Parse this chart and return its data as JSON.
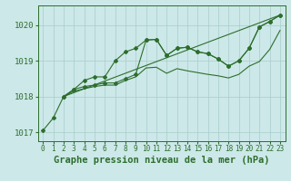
{
  "background_color": "#cce8e8",
  "grid_color": "#aacccc",
  "line_color": "#2d6e2d",
  "title": "Graphe pression niveau de la mer (hPa)",
  "xlim": [
    -0.5,
    23.5
  ],
  "ylim": [
    1016.75,
    1020.55
  ],
  "yticks": [
    1017,
    1018,
    1019,
    1020
  ],
  "xticks": [
    0,
    1,
    2,
    3,
    4,
    5,
    6,
    7,
    8,
    9,
    10,
    11,
    12,
    13,
    14,
    15,
    16,
    17,
    18,
    19,
    20,
    21,
    22,
    23
  ],
  "line1_x": [
    0,
    1,
    2,
    3,
    4,
    5,
    6,
    7,
    8,
    9,
    10,
    11,
    12,
    13,
    14,
    15,
    16,
    17,
    18,
    19,
    20,
    21,
    22,
    23
  ],
  "line1_y": [
    1017.05,
    1017.4,
    1018.0,
    1018.2,
    1018.45,
    1018.55,
    1018.55,
    1019.0,
    1019.25,
    1019.35,
    1019.58,
    1019.6,
    1019.15,
    1019.35,
    1019.38,
    1019.25,
    1019.2,
    1019.05,
    1018.85,
    1019.0,
    1019.35,
    1019.95,
    1020.1,
    1020.28
  ],
  "line2_x": [
    2,
    3,
    4,
    5,
    6,
    7,
    8,
    9,
    10,
    11,
    12,
    13,
    14,
    15,
    16,
    17,
    18,
    19,
    20,
    21,
    22,
    23
  ],
  "line2_y": [
    1018.0,
    1018.2,
    1018.28,
    1018.32,
    1018.38,
    1018.38,
    1018.5,
    1018.62,
    1019.58,
    1019.6,
    1019.15,
    1019.35,
    1019.38,
    1019.25,
    1019.2,
    1019.05,
    1018.85,
    1019.0,
    1019.35,
    1019.95,
    1020.1,
    1020.28
  ],
  "line3_x": [
    2,
    3,
    4,
    5,
    6,
    7,
    8,
    9,
    10,
    11,
    12,
    13,
    14,
    15,
    16,
    17,
    18,
    19,
    20,
    21,
    22,
    23
  ],
  "line3_y": [
    1018.0,
    1018.15,
    1018.22,
    1018.28,
    1018.32,
    1018.32,
    1018.45,
    1018.55,
    1018.8,
    1018.82,
    1018.65,
    1018.78,
    1018.72,
    1018.67,
    1018.62,
    1018.58,
    1018.52,
    1018.62,
    1018.85,
    1018.98,
    1019.32,
    1019.85
  ],
  "line4_x": [
    2,
    23
  ],
  "line4_y": [
    1018.0,
    1020.28
  ]
}
